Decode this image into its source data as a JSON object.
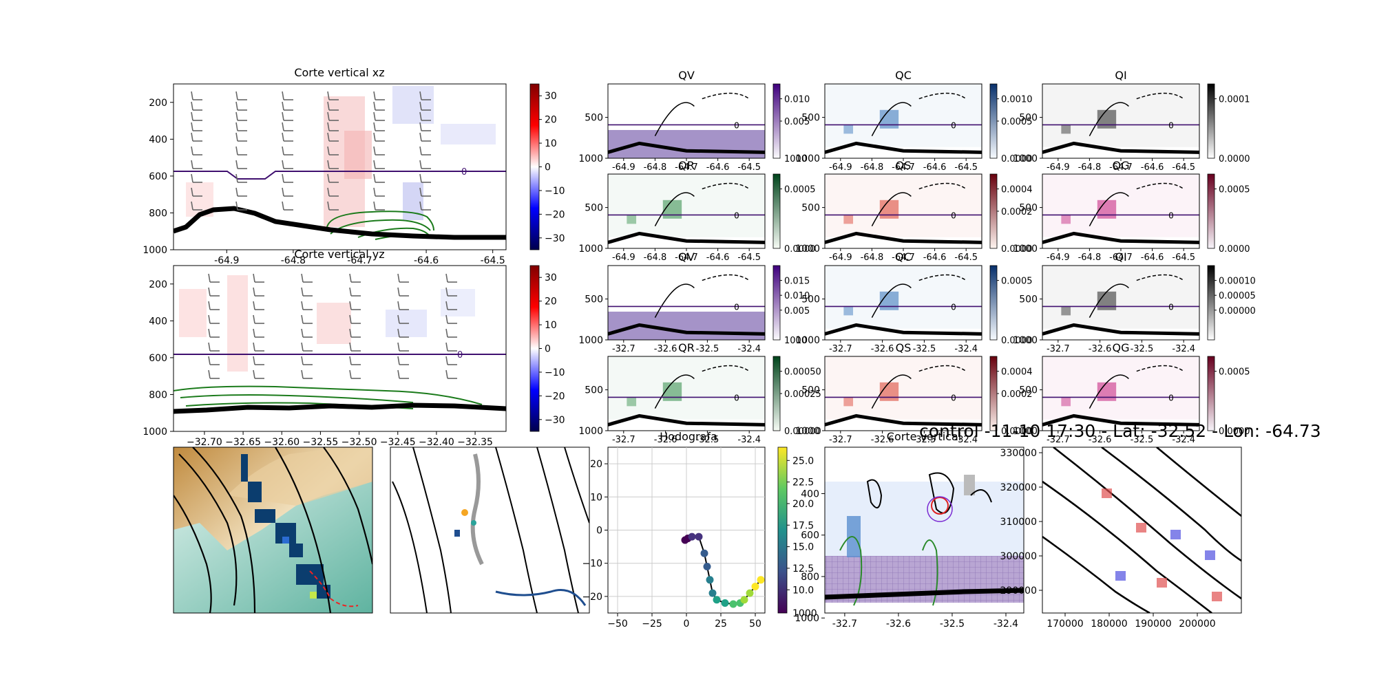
{
  "suptitle": "control -11-10 17:30 - Lat: -32.52 - Lon: -64.73",
  "chart_data": [
    {
      "id": "xz",
      "type": "heatmap",
      "title": "Corte vertical xz",
      "xticks": [
        "-64.9",
        "-64.8",
        "-64.7",
        "-64.6",
        "-64.5"
      ],
      "xlim": [
        -64.98,
        -64.48
      ],
      "yticks": [
        "200",
        "400",
        "600",
        "800",
        "1000"
      ],
      "ylim": [
        1000,
        100
      ],
      "freezing_level_label": "0",
      "colorbar": {
        "ticks": [
          "30",
          "20",
          "10",
          "0",
          "−10",
          "−20",
          "−30"
        ],
        "range": [
          -35,
          35
        ],
        "cmap": "seismic"
      }
    },
    {
      "id": "yz",
      "type": "heatmap",
      "title": "Corte vertical yz",
      "xticks": [
        "−32.70",
        "−32.65",
        "−32.60",
        "−32.55",
        "−32.50",
        "−32.45",
        "−32.40",
        "−32.35"
      ],
      "xlim": [
        -32.74,
        -32.31
      ],
      "yticks": [
        "200",
        "400",
        "600",
        "800",
        "1000"
      ],
      "ylim": [
        1000,
        100
      ],
      "freezing_level_label": "0",
      "colorbar": {
        "ticks": [
          "30",
          "20",
          "10",
          "0",
          "−10",
          "−20",
          "−30"
        ],
        "range": [
          -35,
          35
        ],
        "cmap": "seismic"
      }
    },
    {
      "id": "qv_x",
      "type": "heatmap",
      "title": "QV",
      "xticks": [
        "-64.9",
        "-64.8",
        "-64.7",
        "-64.6",
        "-64.5"
      ],
      "yticks": [
        "500",
        "1000"
      ],
      "colorbar": {
        "ticks": [
          "0.010",
          "0.005"
        ],
        "bottom": "1000"
      },
      "cmap": "purple",
      "label": "0"
    },
    {
      "id": "qc_x",
      "type": "heatmap",
      "title": "QC",
      "xticks": [
        "-64.9",
        "-64.8",
        "-64.7",
        "-64.6",
        "-64.5"
      ],
      "yticks": [
        "500",
        "1000"
      ],
      "colorbar": {
        "ticks": [
          "0.0010",
          "0.0005"
        ],
        "bottom": "0.0000"
      },
      "cmap": "blue",
      "label": "0"
    },
    {
      "id": "qi_x",
      "type": "heatmap",
      "title": "QI",
      "xticks": [
        "-64.9",
        "-64.8",
        "-64.7",
        "-64.6",
        "-64.5"
      ],
      "yticks": [
        "500",
        "1000"
      ],
      "colorbar": {
        "ticks": [
          "0.0001"
        ],
        "bottom": "0.0000"
      },
      "cmap": "gray",
      "label": "0"
    },
    {
      "id": "qr_x",
      "type": "heatmap",
      "title": "QR",
      "xticks": [
        "-64.9",
        "-64.8",
        "-64.7",
        "-64.6",
        "-64.5"
      ],
      "yticks": [
        "500",
        "1000"
      ],
      "colorbar": {
        "ticks": [
          "0.0005"
        ],
        "bottom": "0.0000"
      },
      "cmap": "green",
      "label": "0"
    },
    {
      "id": "qs_x",
      "type": "heatmap",
      "title": "QS",
      "xticks": [
        "-64.9",
        "-64.8",
        "-64.7",
        "-64.6",
        "-64.5"
      ],
      "yticks": [
        "500",
        "1000"
      ],
      "colorbar": {
        "ticks": [
          "0.0004",
          "0.0002"
        ],
        "bottom": "0.0000"
      },
      "cmap": "red",
      "label": "0"
    },
    {
      "id": "qg_x",
      "type": "heatmap",
      "title": "QG",
      "xticks": [
        "-64.9",
        "-64.8",
        "-64.7",
        "-64.6",
        "-64.5"
      ],
      "yticks": [
        "500",
        "1000"
      ],
      "colorbar": {
        "ticks": [
          "0.0005"
        ],
        "bottom": "0.0000"
      },
      "cmap": "magenta",
      "label": "0"
    },
    {
      "id": "qv_y",
      "type": "heatmap",
      "title": "QV",
      "xticks": [
        "-32.7",
        "-32.6",
        "-32.5",
        "-32.4"
      ],
      "yticks": [
        "500",
        "1000"
      ],
      "colorbar": {
        "ticks": [
          "0.015",
          "0.010",
          "0.005"
        ],
        "bottom": "1000"
      },
      "cmap": "purple",
      "label": "0"
    },
    {
      "id": "qc_y",
      "type": "heatmap",
      "title": "QC",
      "xticks": [
        "-32.7",
        "-32.6",
        "-32.5",
        "-32.4"
      ],
      "yticks": [
        "500",
        "1000"
      ],
      "colorbar": {
        "ticks": [
          "0.0005"
        ],
        "bottom": "0.0000"
      },
      "cmap": "blue",
      "label": "0"
    },
    {
      "id": "qi_y",
      "type": "heatmap",
      "title": "QI",
      "xticks": [
        "-32.7",
        "-32.6",
        "-32.5",
        "-32.4"
      ],
      "yticks": [
        "500",
        "1000"
      ],
      "colorbar": {
        "ticks": [
          "0.00010",
          "0.00005",
          "0.00000"
        ],
        "bottom": ""
      },
      "cmap": "gray",
      "label": "0"
    },
    {
      "id": "qr_y",
      "type": "heatmap",
      "title": "QR",
      "xticks": [
        "-32.7",
        "-32.6",
        "-32.5",
        "-32.4"
      ],
      "yticks": [
        "500",
        "1000"
      ],
      "colorbar": {
        "ticks": [
          "0.00050",
          "0.00025"
        ],
        "bottom": "0.00000"
      },
      "cmap": "green",
      "label": "0"
    },
    {
      "id": "qs_y",
      "type": "heatmap",
      "title": "QS",
      "xticks": [
        "-32.7",
        "-32.6",
        "-32.5",
        "-32.4"
      ],
      "yticks": [
        "500",
        "1000"
      ],
      "colorbar": {
        "ticks": [
          "0.0004",
          "0.0002"
        ],
        "bottom": "0.0000"
      },
      "cmap": "red",
      "label": "0"
    },
    {
      "id": "qg_y",
      "type": "heatmap",
      "title": "QG",
      "xticks": [
        "-32.7",
        "-32.6",
        "-32.5",
        "-32.4"
      ],
      "yticks": [
        "500",
        "1000"
      ],
      "colorbar": {
        "ticks": [
          "0.0005"
        ],
        "bottom": "0.0000"
      },
      "cmap": "magenta",
      "label": "0"
    },
    {
      "id": "hodo",
      "type": "scatter",
      "title": "Hodografa",
      "xticks": [
        "−50",
        "−25",
        "0",
        "25",
        "50"
      ],
      "xlim": [
        -57,
        57
      ],
      "yticks": [
        "−20",
        "−10",
        "0",
        "10",
        "20"
      ],
      "ylim": [
        -25,
        25
      ],
      "u": [
        -1,
        1,
        4,
        9,
        13,
        15,
        17,
        19,
        22,
        28,
        34,
        39,
        42,
        46,
        50,
        54
      ],
      "v": [
        -3,
        -2.5,
        -2,
        -2,
        -7,
        -11,
        -15,
        -19,
        -21,
        -22,
        -22.3,
        -22,
        -21,
        -19,
        -17,
        -15
      ],
      "colorbar": {
        "ticks": [
          "25.0",
          "22.5",
          "20.0",
          "17.5",
          "15.0",
          "12.5",
          "10.0"
        ],
        "bottom": "1000",
        "cmap": "viridis"
      }
    },
    {
      "id": "cut",
      "type": "heatmap",
      "title": "Corte vertical",
      "xticks": [
        "-32.7",
        "-32.6",
        "-32.5",
        "-32.4"
      ],
      "yticks": [
        "400",
        "600",
        "800",
        "1000"
      ]
    },
    {
      "id": "map_right",
      "type": "other",
      "xticks": [
        "170000",
        "180000",
        "190000",
        "200000"
      ],
      "yticks": [
        "330000",
        "320000",
        "310000",
        "300000",
        "290000"
      ]
    }
  ]
}
